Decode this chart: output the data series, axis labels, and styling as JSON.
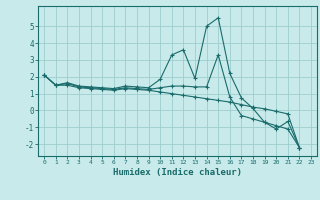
{
  "xlabel": "Humidex (Indice chaleur)",
  "background_color": "#c8eaea",
  "grid_color": "#9ecece",
  "line_color": "#1a6b6b",
  "xlim": [
    -0.5,
    23.5
  ],
  "ylim": [
    -2.7,
    6.2
  ],
  "xticks": [
    0,
    1,
    2,
    3,
    4,
    5,
    6,
    7,
    8,
    9,
    10,
    11,
    12,
    13,
    14,
    15,
    16,
    17,
    18,
    19,
    20,
    21,
    22,
    23
  ],
  "yticks": [
    -2,
    -1,
    0,
    1,
    2,
    3,
    4,
    5
  ],
  "series": [
    [
      2.1,
      1.5,
      1.65,
      1.45,
      1.4,
      1.35,
      1.3,
      1.45,
      1.4,
      1.35,
      1.85,
      3.3,
      3.6,
      1.9,
      5.0,
      5.5,
      2.2,
      0.75,
      0.12,
      -0.7,
      -1.1,
      -0.65,
      -2.2
    ],
    [
      2.1,
      1.5,
      1.6,
      1.4,
      1.35,
      1.3,
      1.25,
      1.35,
      1.3,
      1.25,
      1.35,
      1.45,
      1.45,
      1.4,
      1.4,
      3.3,
      0.8,
      -0.3,
      -0.5,
      -0.7,
      -0.9,
      -1.1,
      -2.2
    ],
    [
      2.1,
      1.5,
      1.5,
      1.35,
      1.3,
      1.25,
      1.2,
      1.3,
      1.25,
      1.2,
      1.1,
      1.0,
      0.9,
      0.8,
      0.7,
      0.6,
      0.5,
      0.35,
      0.2,
      0.1,
      -0.05,
      -0.2,
      -2.2
    ]
  ]
}
